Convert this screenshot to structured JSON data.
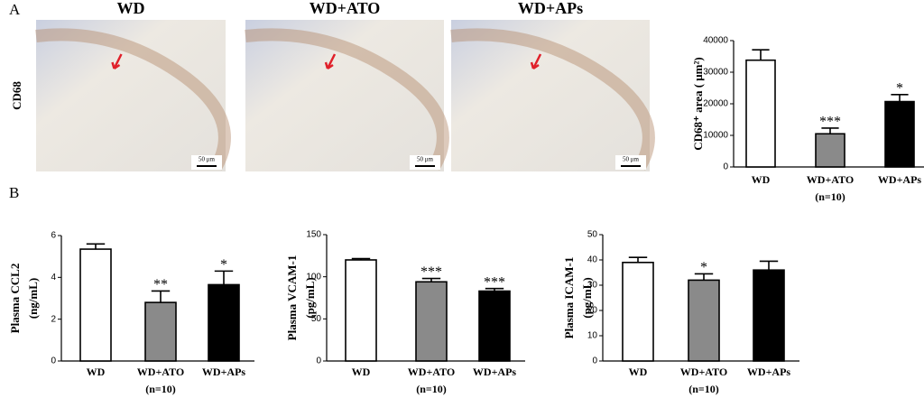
{
  "figure": {
    "panel_a_label": "A",
    "panel_b_label": "B",
    "row_label": "CD68",
    "columns": [
      "WD",
      "WD+ATO",
      "WD+APs"
    ],
    "scale_bar": "50 μm"
  },
  "chart_data": [
    {
      "type": "bar",
      "ylabel": [
        "CD68⁺ area ( μm²)"
      ],
      "categories": [
        "WD",
        "WD+ATO",
        "WD+APs"
      ],
      "note": "(n=10)",
      "values": [
        33800,
        10500,
        20700
      ],
      "errors": [
        3300,
        1800,
        2200
      ],
      "significance": [
        null,
        "***",
        "*"
      ],
      "colors": [
        "#ffffff",
        "#8a8a8a",
        "#000000"
      ],
      "ylim": [
        0,
        40000
      ],
      "yticks": [
        0,
        10000,
        20000,
        30000,
        40000
      ]
    },
    {
      "type": "bar",
      "ylabel": [
        "Plasma CCL2",
        "(ng/mL)"
      ],
      "categories": [
        "WD",
        "WD+ATO",
        "WD+APs"
      ],
      "note": "(n=10)",
      "values": [
        5.35,
        2.8,
        3.65
      ],
      "errors": [
        0.25,
        0.55,
        0.65
      ],
      "significance": [
        null,
        "**",
        "*"
      ],
      "colors": [
        "#ffffff",
        "#8a8a8a",
        "#000000"
      ],
      "ylim": [
        0,
        6
      ],
      "yticks": [
        0,
        2,
        4,
        6
      ]
    },
    {
      "type": "bar",
      "ylabel": [
        "Plasma VCAM-1",
        "(pg/mL)"
      ],
      "categories": [
        "WD",
        "WD+ATO",
        "WD+APs"
      ],
      "note": "(n=10)",
      "values": [
        120,
        94,
        83
      ],
      "errors": [
        1.5,
        4,
        3
      ],
      "significance": [
        null,
        "***",
        "***"
      ],
      "colors": [
        "#ffffff",
        "#8a8a8a",
        "#000000"
      ],
      "ylim": [
        0,
        150
      ],
      "yticks": [
        0,
        50,
        100,
        150
      ]
    },
    {
      "type": "bar",
      "ylabel": [
        "Plasma ICAM-1",
        "(pg/mL)"
      ],
      "categories": [
        "WD",
        "WD+ATO",
        "WD+APs"
      ],
      "note": "(n=10)",
      "values": [
        39,
        32,
        36
      ],
      "errors": [
        2,
        2.5,
        3.5
      ],
      "significance": [
        null,
        "*",
        null
      ],
      "colors": [
        "#ffffff",
        "#8a8a8a",
        "#000000"
      ],
      "ylim": [
        0,
        50
      ],
      "yticks": [
        0,
        10,
        20,
        30,
        40,
        50
      ]
    }
  ]
}
